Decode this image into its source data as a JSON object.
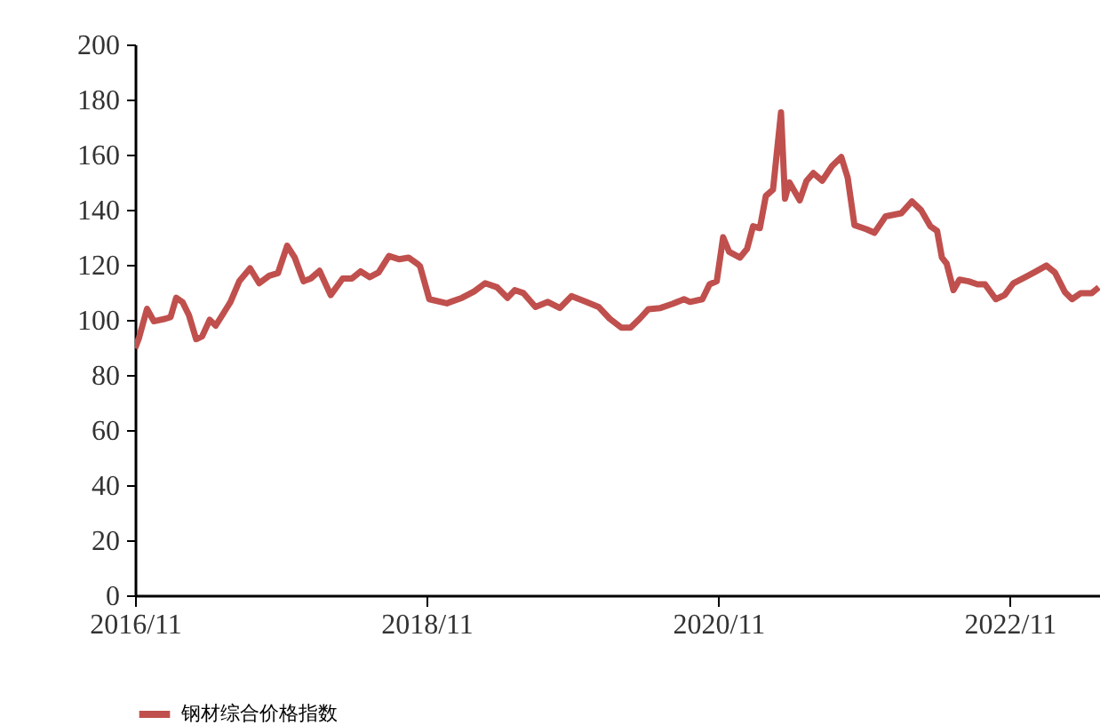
{
  "chart_data": {
    "type": "line",
    "legend": "bottom",
    "xlim": [
      "2016-11-01",
      "2023-06-15"
    ],
    "ylim": [
      0,
      200
    ],
    "xticks": [
      {
        "value": "2016-11",
        "label": "2016/11"
      },
      {
        "value": "2018-11",
        "label": "2018/11"
      },
      {
        "value": "2020-11",
        "label": "2020/11"
      },
      {
        "value": "2022-11",
        "label": "2022/11"
      }
    ],
    "yticks": [
      0,
      20,
      40,
      60,
      80,
      100,
      120,
      140,
      160,
      180,
      200
    ],
    "x": [
      "2016-11-01",
      "2016-11-11",
      "2016-12-01",
      "2016-12-18",
      "2017-01-16",
      "2017-01-29",
      "2017-02-12",
      "2017-02-28",
      "2017-03-16",
      "2017-04-03",
      "2017-04-18",
      "2017-05-07",
      "2017-05-22",
      "2017-06-28",
      "2017-07-20",
      "2017-08-16",
      "2017-09-08",
      "2017-10-03",
      "2017-10-25",
      "2017-11-17",
      "2017-12-06",
      "2017-12-28",
      "2018-01-15",
      "2018-02-06",
      "2018-03-06",
      "2018-04-05",
      "2018-04-28",
      "2018-05-20",
      "2018-06-12",
      "2018-07-04",
      "2018-07-30",
      "2018-08-25",
      "2018-09-17",
      "2018-10-09",
      "2018-10-16",
      "2018-11-08",
      "2018-12-22",
      "2019-01-29",
      "2019-02-28",
      "2019-03-28",
      "2019-04-27",
      "2019-05-23",
      "2019-06-10",
      "2019-07-02",
      "2019-08-01",
      "2019-09-01",
      "2019-10-01",
      "2019-10-30",
      "2019-12-06",
      "2020-01-06",
      "2020-02-03",
      "2020-03-03",
      "2020-03-26",
      "2020-04-18",
      "2020-05-10",
      "2020-06-09",
      "2020-07-09",
      "2020-08-07",
      "2020-08-22",
      "2020-09-22",
      "2020-10-10",
      "2020-10-28",
      "2020-11-13",
      "2020-11-28",
      "2020-12-25",
      "2021-01-12",
      "2021-01-27",
      "2021-02-13",
      "2021-02-28",
      "2021-03-18",
      "2021-04-07",
      "2021-04-17",
      "2021-04-28",
      "2021-05-24",
      "2021-06-10",
      "2021-06-27",
      "2021-07-19",
      "2021-08-13",
      "2021-09-05",
      "2021-09-21",
      "2021-10-08",
      "2021-11-07",
      "2021-11-27",
      "2021-12-25",
      "2022-02-02",
      "2022-03-01",
      "2022-03-24",
      "2022-04-16",
      "2022-05-03",
      "2022-05-15",
      "2022-05-27",
      "2022-06-13",
      "2022-06-28",
      "2022-07-21",
      "2022-08-12",
      "2022-08-31",
      "2022-09-27",
      "2022-10-19",
      "2022-11-10",
      "2022-12-10",
      "2023-01-01",
      "2023-02-01",
      "2023-02-22",
      "2023-03-19",
      "2023-04-06",
      "2023-04-28",
      "2023-05-25",
      "2023-06-12"
    ],
    "series": [
      {
        "name": "钢材综合价格指数",
        "color": "#c0504d",
        "values": [
          89.7,
          93.5,
          104,
          99.5,
          100.4,
          101,
          108,
          106.4,
          101.7,
          93,
          94,
          100,
          97.9,
          106.5,
          114,
          118.7,
          113.3,
          116,
          117,
          126.9,
          122.6,
          114,
          115,
          117.8,
          109,
          115,
          115,
          117.6,
          115.5,
          117.2,
          123.2,
          122,
          122.6,
          120.4,
          119.4,
          107.5,
          106,
          108,
          110.3,
          113.3,
          111.8,
          108,
          110.8,
          109.7,
          104.7,
          106.5,
          104.3,
          108.6,
          106.5,
          104.7,
          100.4,
          97.2,
          97.2,
          100.4,
          103.9,
          104.3,
          105.8,
          107.5,
          106.5,
          107.5,
          112.9,
          114,
          130,
          124.7,
          122.6,
          125.8,
          134,
          133.3,
          145,
          147.3,
          175.3,
          144,
          149.9,
          143.4,
          150.5,
          153.3,
          150.5,
          155.9,
          159.1,
          151.6,
          134.4,
          132.9,
          131.6,
          137.6,
          138.7,
          143,
          139.8,
          134,
          132.3,
          122.6,
          120.4,
          110.8,
          114.6,
          114,
          112.9,
          112.9,
          107.5,
          109,
          113.3,
          115.5,
          117.2,
          119.7,
          117.2,
          110.1,
          107.5,
          109.7,
          109.7,
          111.8
        ]
      }
    ]
  }
}
